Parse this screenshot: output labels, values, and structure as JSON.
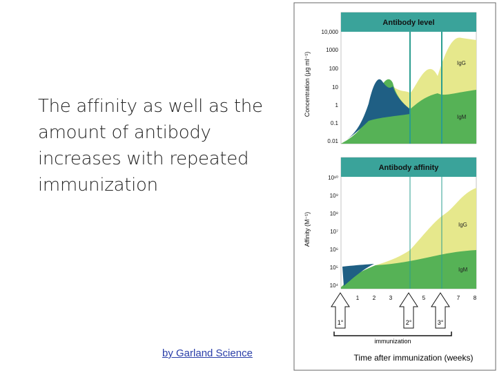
{
  "slide": {
    "text": "The affinity as well as the amount of antibody increases with repeated immunization",
    "credit": "by Garland Science"
  },
  "figure": {
    "top_panel": {
      "title": "Antibody level",
      "ylabel": "Concentration (μg ml⁻¹)",
      "ticks": [
        "10,000",
        "1000",
        "100",
        "10",
        "1",
        "0.1",
        "0.01"
      ],
      "series_labels": [
        "IgG",
        "IgM"
      ]
    },
    "bottom_panel": {
      "title": "Antibody affinity",
      "ylabel": "Affinity (M⁻¹)",
      "ticks": [
        "10¹⁰",
        "10⁹",
        "10⁸",
        "10⁷",
        "10⁶",
        "10⁵",
        "10⁴"
      ],
      "series_labels": [
        "IgG",
        "IgM"
      ]
    },
    "x_ticks": [
      "1",
      "2",
      "3",
      "4",
      "5",
      "6",
      "7",
      "8"
    ],
    "immunizations": [
      "1°",
      "2°",
      "3°"
    ],
    "immunization_label": "immunization",
    "xlabel": "Time after immunization (weeks)",
    "colors": {
      "title_band": "#3aa39a",
      "igg_fill": "#e6e88c",
      "igm_fill": "#56b256",
      "igm_dark": "#1f5f84",
      "marker_line": "#2a9d8f"
    }
  },
  "chart_data": [
    {
      "type": "area",
      "title": "Antibody level",
      "ylabel": "Concentration (μg ml⁻¹)",
      "y_scale": "log",
      "ylim": [
        0.01,
        10000
      ],
      "x": [
        0,
        0.5,
        1,
        1.5,
        2,
        2.5,
        3,
        3.5,
        4,
        4.5,
        5,
        5.5,
        6,
        6.5,
        7,
        7.5,
        8
      ],
      "series": [
        {
          "name": "IgG",
          "values": [
            0.01,
            0.02,
            0.1,
            0.5,
            3,
            10,
            20,
            15,
            10,
            30,
            200,
            60,
            30,
            800,
            4000,
            3500,
            3000
          ]
        },
        {
          "name": "IgM",
          "values": [
            0.01,
            0.02,
            0.1,
            0.3,
            1.5,
            5,
            10,
            3,
            1,
            1.5,
            3,
            2,
            1.5,
            3,
            5,
            5,
            5
          ]
        },
        {
          "name": "early IgM peak",
          "values": [
            0.01,
            0.03,
            0.2,
            2,
            20,
            40,
            8,
            2,
            1,
            1,
            1,
            1,
            1,
            1,
            1,
            1,
            1
          ]
        }
      ]
    },
    {
      "type": "area",
      "title": "Antibody affinity",
      "ylabel": "Affinity (M⁻¹)",
      "y_scale": "log",
      "ylim": [
        10000,
        10000000000
      ],
      "x": [
        0,
        1,
        2,
        3,
        4,
        5,
        6,
        7,
        8
      ],
      "series": [
        {
          "name": "IgG",
          "values": [
            10000,
            100000,
            120000,
            300000,
            1000000,
            20000000,
            100000000,
            500000000,
            1000000000
          ]
        },
        {
          "name": "IgM",
          "values": [
            10000,
            80000,
            120000,
            180000,
            250000,
            400000,
            700000,
            1000000,
            1000000
          ]
        }
      ]
    }
  ]
}
